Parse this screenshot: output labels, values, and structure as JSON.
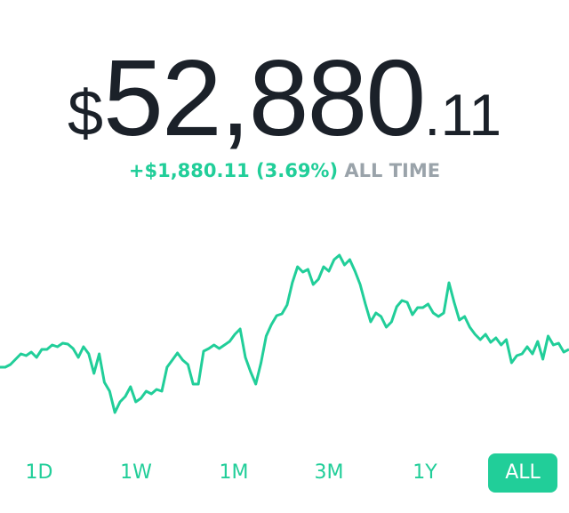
{
  "price": {
    "currency": "$",
    "dollars": "52,880",
    "cents": ".11"
  },
  "change": {
    "amount": "+$1,880.11 (3.69%)",
    "period": "ALL TIME"
  },
  "chart_data": {
    "type": "line",
    "color": "#21ce99",
    "values": [
      51000,
      51000,
      51282,
      51846,
      52410,
      52222,
      52598,
      52034,
      52880,
      52880,
      53350,
      53162,
      53538,
      53444,
      52974,
      52034,
      53162,
      52410,
      50342,
      52410,
      49402,
      48462,
      46206,
      47334,
      47898,
      48932,
      47334,
      47710,
      48462,
      48180,
      48650,
      48462,
      51000,
      51752,
      52504,
      51752,
      51282,
      49214,
      49214,
      52692,
      52974,
      53350,
      52974,
      53350,
      53726,
      54478,
      55042,
      52034,
      50530,
      49214,
      51470,
      54290,
      55512,
      56452,
      56640,
      57580,
      59930,
      61622,
      61058,
      61340,
      59742,
      60306,
      61622,
      61152,
      62374,
      62844,
      61810,
      62374,
      61152,
      59742,
      57674,
      55794,
      56734,
      56358,
      55230,
      55794,
      57392,
      58050,
      57862,
      56546,
      57298,
      57298,
      57674,
      56734,
      56358,
      56734,
      59930,
      57862,
      55982,
      56358,
      55230,
      54478,
      53914,
      54478,
      53632,
      54102,
      53350,
      53914,
      51470,
      52222,
      52410,
      53162,
      52410,
      53726,
      51846,
      54290,
      53350,
      53538,
      52598,
      52880.11
    ]
  },
  "ranges": {
    "items": [
      "1D",
      "1W",
      "1M",
      "3M",
      "1Y",
      "ALL"
    ],
    "selected": 5
  }
}
